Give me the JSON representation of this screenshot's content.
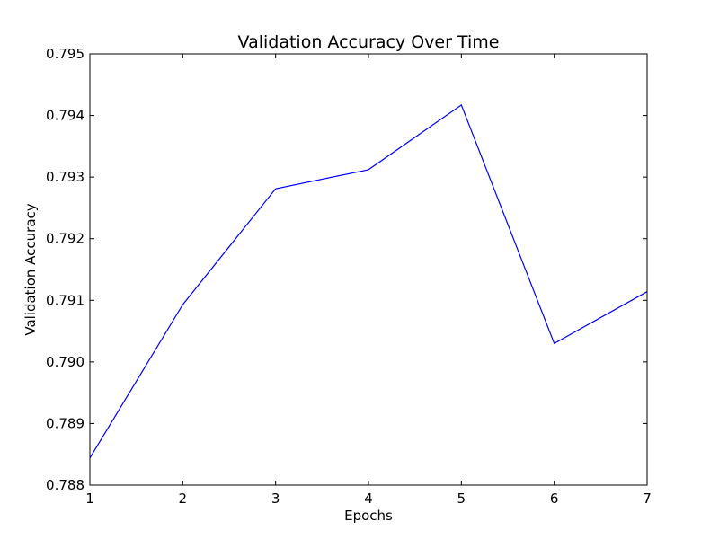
{
  "chart_data": {
    "type": "line",
    "title": "Validation Accuracy Over Time",
    "xlabel": "Epochs",
    "ylabel": "Validation Accuracy",
    "xlim": [
      1,
      7
    ],
    "ylim": [
      0.788,
      0.795
    ],
    "xticks": [
      "1",
      "2",
      "3",
      "4",
      "5",
      "6",
      "7"
    ],
    "yticks": [
      "0.788",
      "0.789",
      "0.790",
      "0.791",
      "0.792",
      "0.793",
      "0.794",
      "0.795"
    ],
    "grid": false,
    "legend": "none",
    "series": [
      {
        "color": "#0000ff",
        "x": [
          1,
          2,
          3,
          4,
          5,
          6,
          7
        ],
        "y": [
          0.78844,
          0.79093,
          0.79281,
          0.79312,
          0.79417,
          0.7903,
          0.79114
        ]
      }
    ]
  }
}
